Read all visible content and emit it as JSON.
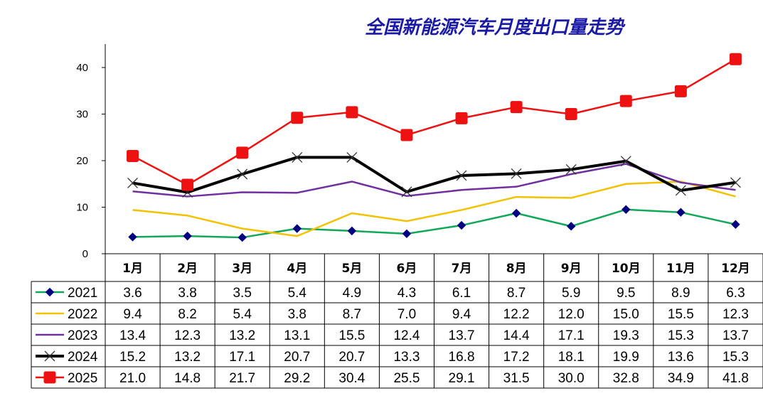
{
  "chart_data": {
    "type": "line",
    "title": "全国新能源汽车月度出口量走势",
    "categories": [
      "1月",
      "2月",
      "3月",
      "4月",
      "5月",
      "6月",
      "7月",
      "8月",
      "9月",
      "10月",
      "11月",
      "12月"
    ],
    "ylim": [
      0,
      45
    ],
    "yticks": [
      0,
      10,
      20,
      30,
      40
    ],
    "grid": false,
    "legend": "data-table-left",
    "series": [
      {
        "name": "2021",
        "color": "#12a85a",
        "marker": "diamond",
        "values": [
          3.6,
          3.8,
          3.5,
          5.4,
          4.9,
          4.3,
          6.1,
          8.7,
          5.9,
          9.5,
          8.9,
          6.3
        ],
        "labels": [
          "3.6",
          "3.8",
          "3.5",
          "5.4",
          "4.9",
          "4.3",
          "6.1",
          "8.7",
          "5.9",
          "9.5",
          "8.9",
          "6.3"
        ]
      },
      {
        "name": "2022",
        "color": "#f2c200",
        "marker": "none",
        "values": [
          9.4,
          8.2,
          5.4,
          3.8,
          8.7,
          7.0,
          9.4,
          12.2,
          12.0,
          15.0,
          15.5,
          12.3
        ],
        "labels": [
          "9.4",
          "8.2",
          "5.4",
          "3.8",
          "8.7",
          "7.0",
          "9.4",
          "12.2",
          "12.0",
          "15.0",
          "15.5",
          "12.3"
        ]
      },
      {
        "name": "2023",
        "color": "#7030a0",
        "marker": "none",
        "values": [
          13.4,
          12.3,
          13.2,
          13.1,
          15.5,
          12.4,
          13.7,
          14.4,
          17.1,
          19.3,
          15.3,
          13.7
        ],
        "labels": [
          "13.4",
          "12.3",
          "13.2",
          "13.1",
          "15.5",
          "12.4",
          "13.7",
          "14.4",
          "17.1",
          "19.3",
          "15.3",
          "13.7"
        ]
      },
      {
        "name": "2024",
        "color": "#000000",
        "marker": "x",
        "values": [
          15.2,
          13.2,
          17.1,
          20.7,
          20.7,
          13.3,
          16.8,
          17.2,
          18.1,
          19.9,
          13.6,
          15.3
        ],
        "labels": [
          "15.2",
          "13.2",
          "17.1",
          "20.7",
          "20.7",
          "13.3",
          "16.8",
          "17.2",
          "18.1",
          "19.9",
          "13.6",
          "15.3"
        ]
      },
      {
        "name": "2025",
        "color": "#ee1111",
        "marker": "square",
        "values": [
          21.0,
          14.8,
          21.7,
          29.2,
          30.4,
          25.5,
          29.1,
          31.5,
          30.0,
          32.8,
          34.9,
          41.8
        ],
        "labels": [
          "21.0",
          "14.8",
          "21.7",
          "29.2",
          "30.4",
          "25.5",
          "29.1",
          "31.5",
          "30.0",
          "32.8",
          "34.9",
          "41.8"
        ]
      }
    ]
  }
}
